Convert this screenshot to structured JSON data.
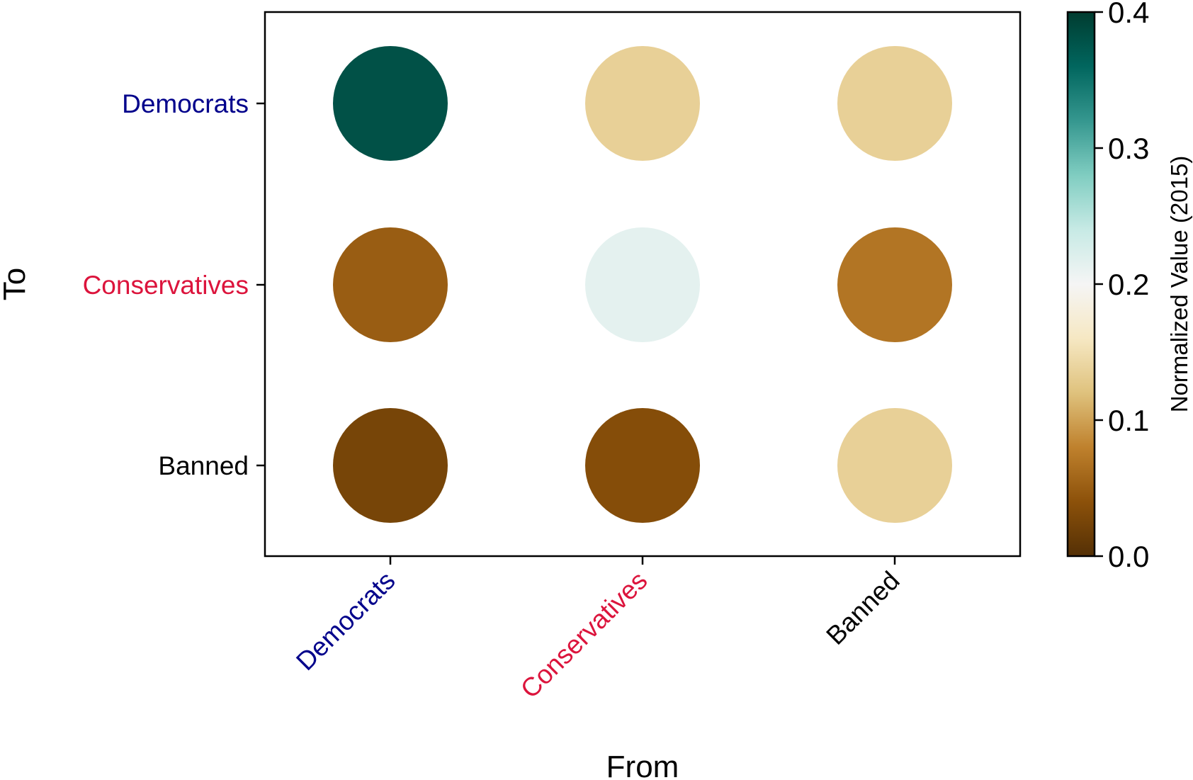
{
  "chart_data": {
    "type": "scatter",
    "subtype": "bubble-matrix",
    "x_categories": [
      "Democrats",
      "Conservatives",
      "Banned"
    ],
    "y_categories": [
      "Democrats",
      "Conservatives",
      "Banned"
    ],
    "xlabel": "From",
    "ylabel": "To",
    "category_colors": {
      "Democrats": "#00008b",
      "Conservatives": "#dc143c",
      "Banned": "#000000"
    },
    "points": [
      {
        "from": "Democrats",
        "to": "Democrats",
        "value": 0.38
      },
      {
        "from": "Conservatives",
        "to": "Democrats",
        "value": 0.135
      },
      {
        "from": "Banned",
        "to": "Democrats",
        "value": 0.135
      },
      {
        "from": "Democrats",
        "to": "Conservatives",
        "value": 0.05
      },
      {
        "from": "Conservatives",
        "to": "Conservatives",
        "value": 0.215
      },
      {
        "from": "Banned",
        "to": "Conservatives",
        "value": 0.07
      },
      {
        "from": "Democrats",
        "to": "Banned",
        "value": 0.025
      },
      {
        "from": "Conservatives",
        "to": "Banned",
        "value": 0.035
      },
      {
        "from": "Banned",
        "to": "Banned",
        "value": 0.135
      }
    ],
    "colorbar": {
      "label": "Normalized Value (2015)",
      "range": [
        0.0,
        0.4
      ],
      "ticks": [
        "0.0",
        "0.1",
        "0.2",
        "0.3",
        "0.4"
      ],
      "colormap": "BrBG"
    },
    "grid": false
  }
}
